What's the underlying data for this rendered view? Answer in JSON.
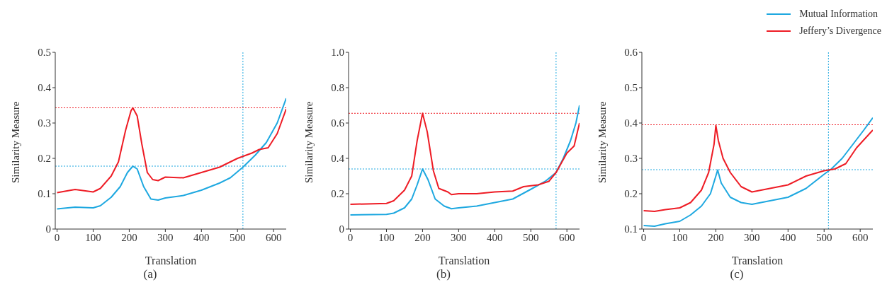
{
  "chart_data": [
    {
      "type": "line",
      "title": "(a)",
      "xlabel": "Translation",
      "ylabel": "Similarity Measure",
      "xlim": [
        -5,
        635
      ],
      "xticks": [
        0,
        100,
        200,
        300,
        400,
        500,
        600
      ],
      "ylim": [
        0,
        0.5
      ],
      "yticks": [
        0,
        0.1,
        0.2,
        0.3,
        0.4,
        0.5
      ],
      "grid": false,
      "legend": false,
      "series": [
        {
          "color": "#1ea8e0",
          "x": [
            0,
            50,
            100,
            120,
            150,
            175,
            195,
            210,
            222,
            240,
            260,
            280,
            300,
            350,
            400,
            450,
            480,
            515,
            550,
            580,
            610,
            635
          ],
          "values": [
            0.057,
            0.062,
            0.06,
            0.066,
            0.09,
            0.12,
            0.16,
            0.178,
            0.17,
            0.12,
            0.085,
            0.082,
            0.088,
            0.095,
            0.11,
            0.13,
            0.145,
            0.175,
            0.21,
            0.245,
            0.3,
            0.37
          ]
        },
        {
          "color": "#ee1c25",
          "x": [
            0,
            50,
            100,
            120,
            150,
            170,
            190,
            205,
            210,
            222,
            235,
            250,
            265,
            280,
            300,
            350,
            400,
            450,
            500,
            540,
            560,
            585,
            610,
            635
          ],
          "values": [
            0.103,
            0.112,
            0.105,
            0.115,
            0.15,
            0.19,
            0.28,
            0.335,
            0.343,
            0.32,
            0.24,
            0.16,
            0.14,
            0.137,
            0.147,
            0.145,
            0.16,
            0.175,
            0.2,
            0.215,
            0.225,
            0.23,
            0.27,
            0.34
          ]
        }
      ],
      "ref_lines": [
        {
          "axis": "y",
          "value": 0.343,
          "color": "#ee1c25",
          "line_style": "dotted"
        },
        {
          "axis": "y",
          "value": 0.178,
          "color": "#1ea8e0",
          "line_style": "dotted"
        },
        {
          "axis": "x",
          "value": 515,
          "color": "#1ea8e0",
          "line_style": "dotted"
        }
      ]
    },
    {
      "type": "line",
      "title": "(b)",
      "xlabel": "Translation",
      "ylabel": "Similarity Measure",
      "xlim": [
        -5,
        635
      ],
      "xticks": [
        0,
        100,
        200,
        300,
        400,
        500,
        600
      ],
      "ylim": [
        0,
        1.0
      ],
      "yticks": [
        0,
        0.2,
        0.4,
        0.6,
        0.8,
        {
          "value": 1.0,
          "label": "1.0"
        }
      ],
      "grid": false,
      "legend": false,
      "series": [
        {
          "color": "#1ea8e0",
          "x": [
            0,
            100,
            120,
            150,
            170,
            185,
            200,
            215,
            235,
            260,
            280,
            300,
            350,
            400,
            450,
            500,
            540,
            570,
            590,
            610,
            625,
            635
          ],
          "values": [
            0.08,
            0.083,
            0.09,
            0.12,
            0.17,
            0.25,
            0.34,
            0.28,
            0.17,
            0.13,
            0.115,
            0.12,
            0.13,
            0.15,
            0.17,
            0.225,
            0.27,
            0.32,
            0.4,
            0.5,
            0.6,
            0.7
          ]
        },
        {
          "color": "#ee1c25",
          "x": [
            0,
            100,
            120,
            150,
            170,
            185,
            200,
            213,
            230,
            245,
            270,
            280,
            300,
            350,
            400,
            450,
            480,
            520,
            550,
            570,
            600,
            620,
            635
          ],
          "values": [
            0.14,
            0.145,
            0.16,
            0.22,
            0.3,
            0.5,
            0.655,
            0.55,
            0.33,
            0.23,
            0.21,
            0.195,
            0.2,
            0.2,
            0.21,
            0.215,
            0.24,
            0.25,
            0.27,
            0.32,
            0.43,
            0.47,
            0.6
          ]
        }
      ],
      "ref_lines": [
        {
          "axis": "y",
          "value": 0.655,
          "color": "#ee1c25",
          "line_style": "dotted"
        },
        {
          "axis": "y",
          "value": 0.34,
          "color": "#1ea8e0",
          "line_style": "dotted"
        },
        {
          "axis": "x",
          "value": 570,
          "color": "#1ea8e0",
          "line_style": "dotted"
        }
      ]
    },
    {
      "type": "line",
      "title": "(c)",
      "xlabel": "Translation",
      "ylabel": "Similarity Measure",
      "xlim": [
        -5,
        635
      ],
      "xticks": [
        0,
        100,
        200,
        300,
        400,
        500,
        600
      ],
      "ylim": [
        0.1,
        0.6
      ],
      "yticks": [
        0.1,
        0.2,
        0.3,
        0.4,
        0.5,
        0.6
      ],
      "grid": false,
      "legend": "top right",
      "series": [
        {
          "name": "Mutual Information",
          "color": "#1ea8e0",
          "x": [
            0,
            30,
            60,
            100,
            130,
            160,
            185,
            200,
            205,
            215,
            240,
            270,
            300,
            350,
            400,
            450,
            500,
            520,
            550,
            580,
            610,
            635
          ],
          "values": [
            0.11,
            0.108,
            0.115,
            0.122,
            0.14,
            0.165,
            0.2,
            0.25,
            0.267,
            0.23,
            0.19,
            0.175,
            0.17,
            0.18,
            0.19,
            0.215,
            0.255,
            0.27,
            0.3,
            0.34,
            0.38,
            0.415
          ]
        },
        {
          "name": "Jeffery’s Divergence",
          "color": "#ee1c25",
          "x": [
            0,
            30,
            60,
            100,
            130,
            160,
            180,
            195,
            200,
            207,
            220,
            240,
            270,
            300,
            350,
            400,
            450,
            500,
            530,
            560,
            590,
            635
          ],
          "values": [
            0.152,
            0.15,
            0.155,
            0.16,
            0.175,
            0.21,
            0.26,
            0.34,
            0.393,
            0.35,
            0.3,
            0.26,
            0.22,
            0.205,
            0.215,
            0.225,
            0.25,
            0.265,
            0.27,
            0.285,
            0.33,
            0.38
          ]
        }
      ],
      "ref_lines": [
        {
          "axis": "y",
          "value": 0.395,
          "color": "#ee1c25",
          "line_style": "dotted"
        },
        {
          "axis": "y",
          "value": 0.268,
          "color": "#1ea8e0",
          "line_style": "dotted"
        },
        {
          "axis": "x",
          "value": 512,
          "color": "#1ea8e0",
          "line_style": "dotted"
        }
      ]
    }
  ]
}
